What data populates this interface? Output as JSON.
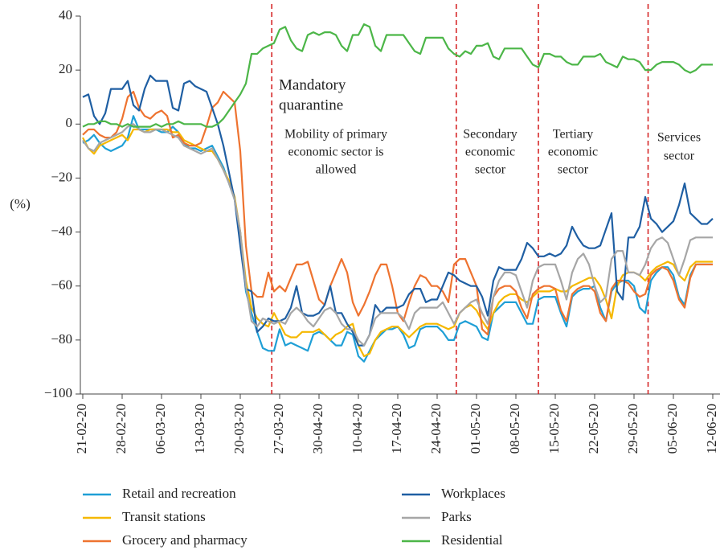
{
  "chart_data": {
    "type": "line",
    "y_label": "(%)",
    "ylim": [
      -100,
      40
    ],
    "yticks": [
      {
        "value": -100,
        "label": "−100"
      },
      {
        "value": -80,
        "label": "−80"
      },
      {
        "value": -60,
        "label": "−60"
      },
      {
        "value": -40,
        "label": "−40"
      },
      {
        "value": -20,
        "label": "−20"
      },
      0,
      20,
      40
    ],
    "grid": false,
    "legend": "bottom",
    "categories": [
      "21-02-20",
      null,
      null,
      null,
      null,
      null,
      null,
      "28-02-20",
      null,
      null,
      null,
      null,
      null,
      null,
      "06-03-20",
      null,
      null,
      null,
      null,
      null,
      null,
      "13-03-20",
      null,
      null,
      null,
      null,
      null,
      null,
      "20-03-20",
      null,
      null,
      null,
      null,
      null,
      null,
      "27-03-20",
      null,
      null,
      null,
      null,
      null,
      null,
      "30-04-20",
      null,
      null,
      null,
      null,
      null,
      null,
      "10-04-20",
      null,
      null,
      null,
      null,
      null,
      null,
      "17-04-20",
      null,
      null,
      null,
      null,
      null,
      null,
      "24-04-20",
      null,
      null,
      null,
      null,
      null,
      null,
      "01-05-20",
      null,
      null,
      null,
      null,
      null,
      null,
      "08-05-20",
      null,
      null,
      null,
      null,
      null,
      null,
      "15-05-20",
      null,
      null,
      null,
      null,
      null,
      null,
      "22-05-20",
      null,
      null,
      null,
      null,
      null,
      null,
      "29-05-20",
      null,
      null,
      null,
      null,
      null,
      null,
      "05-06-20",
      null,
      null,
      null,
      null,
      null,
      null,
      "12-06-20"
    ],
    "annotations": [
      {
        "text": [
          "Mandatory",
          "quarantine"
        ]
      },
      {
        "text": [
          "Mobility of primary",
          "economic sector is",
          "allowed"
        ]
      },
      {
        "text": [
          "Secondary",
          "economic",
          "sector"
        ]
      },
      {
        "text": [
          "Tertiary",
          "economic",
          "sector"
        ]
      },
      {
        "text": [
          "Services",
          "sector"
        ]
      }
    ],
    "series": [
      {
        "name": "Retail and recreation",
        "color": "#1f9fd6",
        "values": [
          -7,
          -6,
          -4,
          -7,
          -9,
          -10,
          -9,
          -8,
          -5,
          3,
          -2,
          -2,
          -2,
          -2,
          -3,
          -3,
          -1,
          -3,
          -7,
          -9,
          -9,
          -10,
          -9,
          -8,
          -12,
          -16,
          -22,
          -28,
          -40,
          -62,
          -70,
          -77,
          -83,
          -84,
          -84,
          -76,
          -82,
          -81,
          -82,
          -83,
          -84,
          -78,
          -77,
          -78,
          -80,
          -82,
          -82,
          -77,
          -78,
          -86,
          -88,
          -84,
          -80,
          -78,
          -76,
          -76,
          -75,
          -78,
          -83,
          -82,
          -76,
          -75,
          -75,
          -75,
          -77,
          -80,
          -80,
          -74,
          -73,
          -74,
          -75,
          -79,
          -80,
          -70,
          -68,
          -66,
          -66,
          -66,
          -70,
          -74,
          -74,
          -65,
          -64,
          -64,
          -64,
          -70,
          -75,
          -64,
          -62,
          -61,
          -61,
          -60,
          -68,
          -73,
          -62,
          -59,
          -58,
          -58,
          -60,
          -68,
          -70,
          -58,
          -55,
          -53,
          -53,
          -56,
          -64,
          -67,
          -56,
          -52,
          -52,
          -52,
          -52
        ]
      },
      {
        "name": "Transit stations",
        "color": "#f5b800",
        "values": [
          -5,
          -9,
          -11,
          -8,
          -7,
          -6,
          -5,
          -4,
          -6,
          -2,
          -2,
          -3,
          -2,
          -2,
          -2,
          -2,
          -3,
          -3,
          -6,
          -7,
          -8,
          -9,
          -10,
          -10,
          -13,
          -17,
          -21,
          -27,
          -40,
          -58,
          -68,
          -72,
          -74,
          -75,
          -70,
          -74,
          -78,
          -79,
          -79,
          -77,
          -77,
          -77,
          -76,
          -78,
          -80,
          -78,
          -77,
          -75,
          -74,
          -82,
          -86,
          -85,
          -80,
          -77,
          -76,
          -75,
          -75,
          -77,
          -79,
          -77,
          -75,
          -74,
          -74,
          -74,
          -75,
          -76,
          -75,
          -70,
          -68,
          -67,
          -69,
          -73,
          -76,
          -70,
          -66,
          -64,
          -63,
          -63,
          -65,
          -66,
          -64,
          -62,
          -62,
          -62,
          -61,
          -62,
          -62,
          -60,
          -59,
          -58,
          -57,
          -57,
          -60,
          -65,
          -72,
          -60,
          -56,
          -55,
          -55,
          -56,
          -58,
          -55,
          -53,
          -52,
          -51,
          -52,
          -56,
          -58,
          -53,
          -51,
          -51,
          -51,
          -51
        ]
      },
      {
        "name": "Grocery and pharmacy",
        "color": "#ee7330",
        "values": [
          -4,
          -2,
          -2,
          -4,
          -5,
          -5,
          -3,
          2,
          10,
          12,
          6,
          3,
          2,
          4,
          5,
          3,
          -5,
          -4,
          -7,
          -8,
          -8,
          -7,
          -1,
          6,
          8,
          12,
          10,
          8,
          -10,
          -45,
          -62,
          -64,
          -64,
          -55,
          -62,
          -60,
          -62,
          -57,
          -52,
          -52,
          -51,
          -58,
          -65,
          -67,
          -60,
          -55,
          -50,
          -55,
          -66,
          -71,
          -67,
          -62,
          -56,
          -52,
          -52,
          -60,
          -70,
          -73,
          -66,
          -60,
          -56,
          -57,
          -60,
          -60,
          -62,
          -66,
          -52,
          -50,
          -50,
          -55,
          -60,
          -76,
          -78,
          -64,
          -61,
          -60,
          -60,
          -62,
          -68,
          -72,
          -63,
          -61,
          -60,
          -60,
          -61,
          -69,
          -73,
          -63,
          -61,
          -60,
          -60,
          -62,
          -70,
          -73,
          -61,
          -58,
          -58,
          -59,
          -62,
          -64,
          -63,
          -56,
          -54,
          -53,
          -54,
          -58,
          -65,
          -68,
          -57,
          -52,
          -52,
          -52,
          -52
        ]
      },
      {
        "name": "Workplaces",
        "color": "#1f5fa3",
        "values": [
          10,
          11,
          3,
          0,
          4,
          13,
          13,
          13,
          16,
          7,
          5,
          13,
          18,
          16,
          16,
          16,
          6,
          5,
          15,
          16,
          14,
          13,
          12,
          6,
          0,
          -8,
          -18,
          -28,
          -45,
          -61,
          -62,
          -77,
          -75,
          -72,
          -73,
          -73,
          -72,
          -68,
          -60,
          -70,
          -71,
          -71,
          -70,
          -67,
          -60,
          -70,
          -70,
          -74,
          -77,
          -82,
          -82,
          -78,
          -67,
          -70,
          -68,
          -68,
          -68,
          -67,
          -63,
          -61,
          -61,
          -66,
          -65,
          -65,
          -60,
          -55,
          -56,
          -58,
          -59,
          -60,
          -60,
          -64,
          -71,
          -58,
          -53,
          -54,
          -54,
          -54,
          -50,
          -44,
          -46,
          -49,
          -49,
          -48,
          -49,
          -48,
          -45,
          -38,
          -42,
          -45,
          -46,
          -46,
          -45,
          -39,
          -33,
          -62,
          -65,
          -42,
          -42,
          -38,
          -27,
          -35,
          -37,
          -40,
          -38,
          -36,
          -30,
          -22,
          -33,
          -35,
          -37,
          -37,
          -35
        ]
      },
      {
        "name": "Parks",
        "color": "#a6a6a6",
        "values": [
          -6,
          -9,
          -10,
          -7,
          -6,
          -5,
          -4,
          -3,
          -1,
          0,
          -2,
          -3,
          -3,
          -2,
          -2,
          -3,
          -4,
          -5,
          -8,
          -9,
          -10,
          -11,
          -10,
          -9,
          -13,
          -17,
          -22,
          -28,
          -40,
          -60,
          -73,
          -75,
          -72,
          -73,
          -74,
          -73,
          -74,
          -70,
          -68,
          -70,
          -73,
          -75,
          -72,
          -69,
          -68,
          -70,
          -74,
          -76,
          -76,
          -80,
          -82,
          -78,
          -72,
          -70,
          -70,
          -70,
          -70,
          -72,
          -76,
          -70,
          -68,
          -68,
          -68,
          -68,
          -66,
          -70,
          -74,
          -70,
          -68,
          -66,
          -65,
          -70,
          -74,
          -64,
          -58,
          -55,
          -55,
          -56,
          -62,
          -68,
          -58,
          -53,
          -52,
          -52,
          -52,
          -58,
          -65,
          -55,
          -50,
          -48,
          -52,
          -60,
          -66,
          -64,
          -50,
          -47,
          -47,
          -55,
          -55,
          -56,
          -52,
          -46,
          -43,
          -42,
          -44,
          -50,
          -56,
          -50,
          -43,
          -42,
          -42,
          -42,
          -42
        ]
      },
      {
        "name": "Residential",
        "color": "#4cb648",
        "values": [
          -1,
          0,
          0,
          1,
          1,
          0,
          0,
          -1,
          0,
          -1,
          -1,
          -1,
          -1,
          0,
          -1,
          0,
          0,
          1,
          0,
          0,
          0,
          0,
          -1,
          -1,
          0,
          2,
          5,
          8,
          11,
          15,
          26,
          26,
          28,
          29,
          30,
          35,
          36,
          31,
          28,
          27,
          33,
          34,
          33,
          34,
          34,
          33,
          29,
          27,
          33,
          33,
          37,
          36,
          29,
          27,
          33,
          33,
          33,
          33,
          30,
          27,
          26,
          32,
          32,
          32,
          32,
          28,
          26,
          25,
          27,
          26,
          29,
          29,
          30,
          25,
          24,
          28,
          28,
          28,
          28,
          25,
          22,
          21,
          26,
          26,
          25,
          25,
          23,
          22,
          22,
          25,
          25,
          25,
          26,
          23,
          22,
          21,
          25,
          24,
          24,
          23,
          20,
          20,
          22,
          23,
          23,
          23,
          22,
          20,
          19,
          20,
          22,
          22,
          22
        ]
      }
    ]
  }
}
